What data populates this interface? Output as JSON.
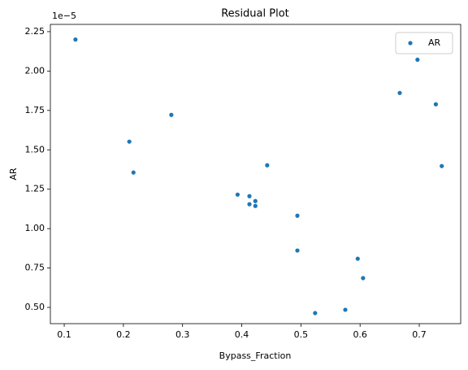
{
  "chart_data": {
    "type": "scatter",
    "title": "Residual Plot",
    "x_label": "Bypass_Fraction",
    "y_label": "AR",
    "y_offset_label": "1e−5",
    "series": [
      {
        "name": "AR",
        "color": "#1f77b4",
        "x": [
          0.119,
          0.217,
          0.21,
          0.281,
          0.393,
          0.413,
          0.413,
          0.423,
          0.423,
          0.443,
          0.494,
          0.494,
          0.524,
          0.575,
          0.596,
          0.605,
          0.667,
          0.697,
          0.728,
          0.738
        ],
        "values": [
          2.2,
          1.356,
          1.552,
          1.722,
          1.216,
          1.206,
          1.155,
          1.175,
          1.144,
          1.402,
          1.082,
          0.861,
          0.464,
          0.485,
          0.809,
          0.686,
          1.861,
          2.072,
          1.789,
          1.397
        ]
      }
    ],
    "xlim": [
      0.0766,
      0.77
    ],
    "xticks": [
      0.1,
      0.2,
      0.3,
      0.4,
      0.5,
      0.6,
      0.7
    ],
    "ylim": [
      0.397,
      2.296
    ],
    "yticks": [
      {
        "value": 0.5,
        "label": "0.50"
      },
      0.75,
      {
        "value": 1,
        "label": "1.00"
      },
      1.25,
      {
        "value": 1.5,
        "label": "1.50"
      },
      1.75,
      {
        "value": 2,
        "label": "2.00"
      },
      2.25
    ],
    "legend": "upper right"
  }
}
